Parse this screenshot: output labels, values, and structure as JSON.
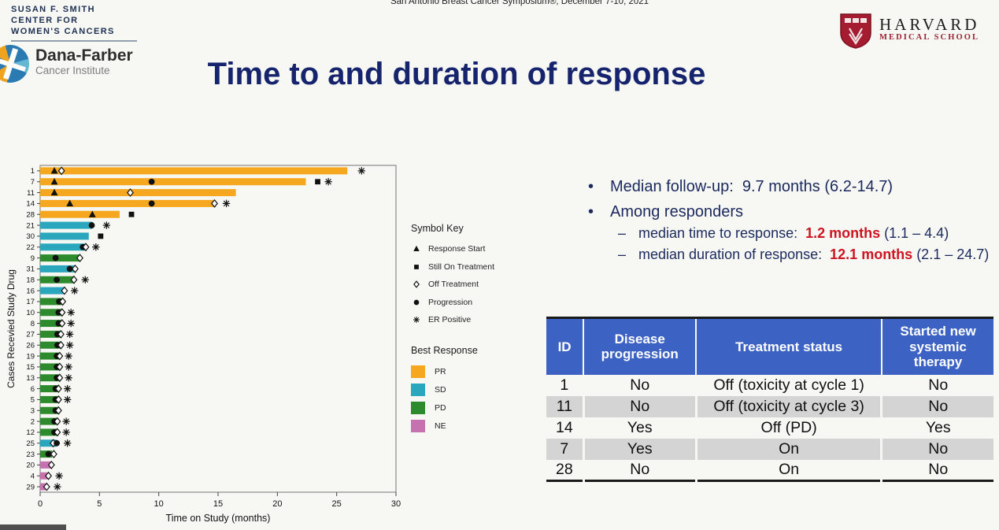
{
  "colors": {
    "title_navy": "#16246e",
    "text_navy": "#1b2a5e",
    "highlight_red": "#cf1421",
    "table_header_blue": "#3c63c3",
    "table_alt_row_gray": "#d4d4d4",
    "pr_orange": "#F5A81F",
    "sd_teal": "#2AA7BC",
    "pd_green": "#2E8B2D",
    "ne_pink": "#C772B0"
  },
  "header": {
    "symposium_line": "San Antonio Breast Cancer Symposium®, December 7-10, 2021",
    "susan_smith": [
      "SUSAN F. SMITH",
      "CENTER FOR",
      "WOMEN'S CANCERS"
    ],
    "dana_farber": {
      "name": "Dana-Farber",
      "subtitle": "Cancer Institute"
    },
    "harvard": {
      "name": "HARVARD",
      "subtitle": "MEDICAL SCHOOL"
    },
    "title": "Time to and duration of response"
  },
  "bullets": {
    "follow_up": "Median follow-up:  9.7 months (6.2-14.7)",
    "among_responders": "Among responders",
    "bullet_glyph": "•",
    "sub": [
      {
        "dash": "–",
        "prefix": "median time to response:  ",
        "value": "1.2 months",
        "suffix": " (1.1 – 4.4)"
      },
      {
        "dash": "–",
        "prefix": "median duration of response:  ",
        "value": "12.1 months",
        "suffix": " (2.1 – 24.7)"
      }
    ]
  },
  "symbol_key": {
    "title": "Symbol Key",
    "items": [
      {
        "symbol": "triangle",
        "label": "Response Start"
      },
      {
        "symbol": "square",
        "label": "Still On Treatment"
      },
      {
        "symbol": "diamond",
        "label": "Off Treatment"
      },
      {
        "symbol": "circle",
        "label": "Progression"
      },
      {
        "symbol": "er",
        "label": "ER Positive"
      }
    ]
  },
  "best_response": {
    "title": "Best Response",
    "items": [
      {
        "code": "PR",
        "color": "#F5A81F"
      },
      {
        "code": "SD",
        "color": "#2AA7BC"
      },
      {
        "code": "PD",
        "color": "#2E8B2D"
      },
      {
        "code": "NE",
        "color": "#C772B0"
      }
    ]
  },
  "chart_data": {
    "type": "bar",
    "variant": "swimmer-plot",
    "xlabel": "Time on Study (months)",
    "ylabel": "Cases Recevied Study Drug",
    "xlim": [
      0,
      30
    ],
    "xticks": [
      0,
      5,
      10,
      15,
      20,
      25,
      30
    ],
    "legend_position": "right",
    "grid": false,
    "rows": [
      {
        "id": 1,
        "response": "PR",
        "length": 25.9,
        "symbols": [
          {
            "t": "triangle",
            "x": 1.2
          },
          {
            "t": "diamond",
            "x": 1.8
          },
          {
            "t": "er",
            "x": 27.1
          }
        ]
      },
      {
        "id": 7,
        "response": "PR",
        "length": 22.4,
        "symbols": [
          {
            "t": "triangle",
            "x": 1.2
          },
          {
            "t": "circle",
            "x": 9.4
          },
          {
            "t": "square",
            "x": 23.4
          },
          {
            "t": "er",
            "x": 24.3
          }
        ]
      },
      {
        "id": 11,
        "response": "PR",
        "length": 16.5,
        "symbols": [
          {
            "t": "triangle",
            "x": 1.2
          },
          {
            "t": "diamond",
            "x": 7.6
          }
        ]
      },
      {
        "id": 14,
        "response": "PR",
        "length": 14.8,
        "symbols": [
          {
            "t": "triangle",
            "x": 2.5
          },
          {
            "t": "circle",
            "x": 9.4
          },
          {
            "t": "diamond",
            "x": 14.7
          },
          {
            "t": "er",
            "x": 15.7
          }
        ]
      },
      {
        "id": 28,
        "response": "PR",
        "length": 6.7,
        "symbols": [
          {
            "t": "triangle",
            "x": 4.4
          },
          {
            "t": "square",
            "x": 7.7
          }
        ]
      },
      {
        "id": 21,
        "response": "SD",
        "length": 4.4,
        "symbols": [
          {
            "t": "circle",
            "x": 4.35
          },
          {
            "t": "er",
            "x": 5.6
          }
        ]
      },
      {
        "id": 30,
        "response": "SD",
        "length": 4.1,
        "symbols": [
          {
            "t": "square",
            "x": 5.1
          }
        ]
      },
      {
        "id": 22,
        "response": "SD",
        "length": 3.8,
        "symbols": [
          {
            "t": "circle",
            "x": 3.6
          },
          {
            "t": "diamond",
            "x": 3.85
          },
          {
            "t": "er",
            "x": 4.7
          }
        ]
      },
      {
        "id": 9,
        "response": "PD",
        "length": 3.4,
        "symbols": [
          {
            "t": "circle",
            "x": 1.3
          },
          {
            "t": "diamond",
            "x": 3.35
          }
        ]
      },
      {
        "id": 31,
        "response": "SD",
        "length": 2.9,
        "symbols": [
          {
            "t": "circle",
            "x": 2.5
          },
          {
            "t": "diamond",
            "x": 2.95
          }
        ]
      },
      {
        "id": 18,
        "response": "PD",
        "length": 2.8,
        "symbols": [
          {
            "t": "circle",
            "x": 1.4
          },
          {
            "t": "diamond",
            "x": 2.85
          },
          {
            "t": "er",
            "x": 3.8
          }
        ]
      },
      {
        "id": 16,
        "response": "SD",
        "length": 2.1,
        "symbols": [
          {
            "t": "diamond",
            "x": 2.05
          },
          {
            "t": "er",
            "x": 2.9
          }
        ]
      },
      {
        "id": 17,
        "response": "PD",
        "length": 1.85,
        "symbols": [
          {
            "t": "circle",
            "x": 1.6
          },
          {
            "t": "diamond",
            "x": 1.9
          }
        ]
      },
      {
        "id": 10,
        "response": "PD",
        "length": 1.8,
        "symbols": [
          {
            "t": "circle",
            "x": 1.55
          },
          {
            "t": "diamond",
            "x": 1.85
          },
          {
            "t": "er",
            "x": 2.6
          }
        ]
      },
      {
        "id": 8,
        "response": "PD",
        "length": 1.8,
        "symbols": [
          {
            "t": "circle",
            "x": 1.55
          },
          {
            "t": "diamond",
            "x": 1.85
          },
          {
            "t": "er",
            "x": 2.6
          }
        ]
      },
      {
        "id": 27,
        "response": "PD",
        "length": 1.7,
        "symbols": [
          {
            "t": "circle",
            "x": 1.45
          },
          {
            "t": "diamond",
            "x": 1.75
          },
          {
            "t": "er",
            "x": 2.5
          }
        ]
      },
      {
        "id": 26,
        "response": "PD",
        "length": 1.7,
        "symbols": [
          {
            "t": "circle",
            "x": 1.45
          },
          {
            "t": "diamond",
            "x": 1.75
          },
          {
            "t": "er",
            "x": 2.5
          }
        ]
      },
      {
        "id": 19,
        "response": "PD",
        "length": 1.6,
        "symbols": [
          {
            "t": "circle",
            "x": 1.4
          },
          {
            "t": "diamond",
            "x": 1.65
          },
          {
            "t": "er",
            "x": 2.4
          }
        ]
      },
      {
        "id": 15,
        "response": "PD",
        "length": 1.6,
        "symbols": [
          {
            "t": "circle",
            "x": 1.4
          },
          {
            "t": "diamond",
            "x": 1.65
          },
          {
            "t": "er",
            "x": 2.4
          }
        ]
      },
      {
        "id": 13,
        "response": "PD",
        "length": 1.6,
        "symbols": [
          {
            "t": "circle",
            "x": 1.4
          },
          {
            "t": "diamond",
            "x": 1.65
          },
          {
            "t": "er",
            "x": 2.4
          }
        ]
      },
      {
        "id": 6,
        "response": "PD",
        "length": 1.5,
        "symbols": [
          {
            "t": "circle",
            "x": 1.3
          },
          {
            "t": "diamond",
            "x": 1.55
          },
          {
            "t": "er",
            "x": 2.3
          }
        ]
      },
      {
        "id": 5,
        "response": "PD",
        "length": 1.5,
        "symbols": [
          {
            "t": "circle",
            "x": 1.3
          },
          {
            "t": "diamond",
            "x": 1.55
          },
          {
            "t": "er",
            "x": 2.3
          }
        ]
      },
      {
        "id": 3,
        "response": "PD",
        "length": 1.5,
        "symbols": [
          {
            "t": "circle",
            "x": 1.3
          },
          {
            "t": "diamond",
            "x": 1.55
          }
        ]
      },
      {
        "id": 2,
        "response": "PD",
        "length": 1.4,
        "symbols": [
          {
            "t": "circle",
            "x": 1.2
          },
          {
            "t": "diamond",
            "x": 1.45
          },
          {
            "t": "er",
            "x": 2.2
          }
        ]
      },
      {
        "id": 12,
        "response": "PD",
        "length": 1.4,
        "symbols": [
          {
            "t": "circle",
            "x": 1.2
          },
          {
            "t": "diamond",
            "x": 1.45
          },
          {
            "t": "er",
            "x": 2.2
          }
        ]
      },
      {
        "id": 25,
        "response": "SD",
        "length": 1.4,
        "symbols": [
          {
            "t": "diamond",
            "x": 1.1
          },
          {
            "t": "circle",
            "x": 1.4
          },
          {
            "t": "er",
            "x": 2.3
          }
        ]
      },
      {
        "id": 23,
        "response": "PD",
        "length": 1.0,
        "symbols": [
          {
            "t": "circle",
            "x": 0.7
          },
          {
            "t": "diamond",
            "x": 1.15
          }
        ]
      },
      {
        "id": 20,
        "response": "NE",
        "length": 0.9,
        "symbols": [
          {
            "t": "diamond",
            "x": 0.95
          }
        ]
      },
      {
        "id": 4,
        "response": "NE",
        "length": 0.6,
        "symbols": [
          {
            "t": "diamond",
            "x": 0.7
          },
          {
            "t": "er",
            "x": 1.6
          }
        ]
      },
      {
        "id": 29,
        "response": "NE",
        "length": 0.45,
        "symbols": [
          {
            "t": "diamond",
            "x": 0.55
          },
          {
            "t": "er",
            "x": 1.45
          }
        ]
      }
    ]
  },
  "table": {
    "columns": [
      "ID",
      "Disease progression",
      "Treatment status",
      "Started new systemic therapy"
    ],
    "rows": [
      [
        "1",
        "No",
        "Off (toxicity at cycle 1)",
        "No"
      ],
      [
        "11",
        "No",
        "Off (toxicity at cycle 3)",
        "No"
      ],
      [
        "14",
        "Yes",
        "Off (PD)",
        "Yes"
      ],
      [
        "7",
        "Yes",
        "On",
        "No"
      ],
      [
        "28",
        "No",
        "On",
        "No"
      ]
    ]
  }
}
